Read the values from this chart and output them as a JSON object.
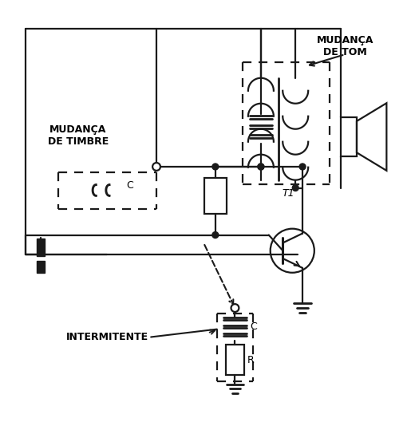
{
  "bg_color": "#ffffff",
  "line_color": "#1a1a1a",
  "figsize": [
    5.2,
    5.34
  ],
  "dpi": 100,
  "labels": {
    "mudanca_timbre": "MUDANÇA\nDE TIMBRE",
    "mudanca_tom": "MUDANÇA\nDE TOM",
    "intermitente": "INTERMITENTE",
    "C_timbre": "C",
    "C_intermitente": "C",
    "R": "R",
    "T1": "T1"
  }
}
